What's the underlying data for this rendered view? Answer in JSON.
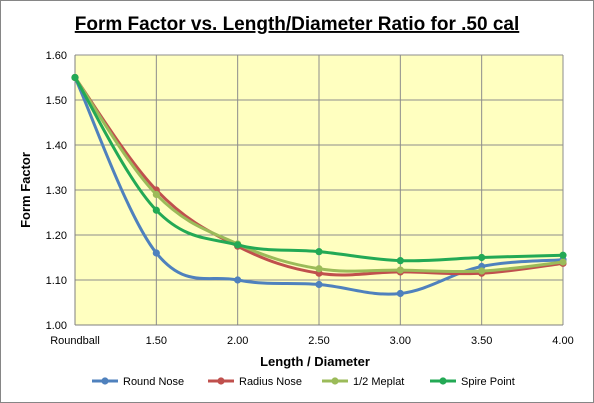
{
  "chart_data": {
    "type": "line",
    "title": "Form Factor vs. Length/Diameter Ratio for .50 cal",
    "xlabel": "Length / Diameter",
    "ylabel": "Form Factor",
    "categories": [
      "Roundball",
      "1.50",
      "2.00",
      "2.50",
      "3.00",
      "3.50",
      "4.00"
    ],
    "ylim": [
      1.0,
      1.6
    ],
    "yticks": [
      "1.00",
      "1.10",
      "1.20",
      "1.30",
      "1.40",
      "1.50",
      "1.60"
    ],
    "grid": true,
    "plot_background": "#FFFFC0",
    "legend_position": "bottom",
    "series": [
      {
        "name": "Round Nose",
        "color": "#4F81BD",
        "values": [
          1.55,
          1.16,
          1.1,
          1.09,
          1.07,
          1.13,
          1.145
        ]
      },
      {
        "name": "Radius Nose",
        "color": "#C0504D",
        "values": [
          1.55,
          1.3,
          1.175,
          1.115,
          1.118,
          1.115,
          1.137
        ]
      },
      {
        "name": "1/2 Meplat",
        "color": "#9BBB59",
        "values": [
          1.55,
          1.29,
          1.18,
          1.125,
          1.122,
          1.12,
          1.14
        ]
      },
      {
        "name": "Spire Point",
        "color": "#23A955",
        "values": [
          1.55,
          1.255,
          1.178,
          1.163,
          1.143,
          1.15,
          1.155
        ]
      }
    ]
  }
}
